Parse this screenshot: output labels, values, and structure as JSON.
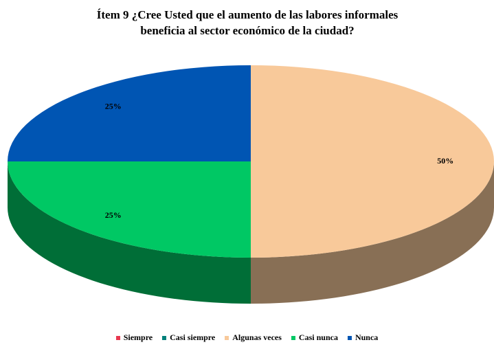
{
  "chart_data": {
    "type": "pie",
    "title": [
      "Ítem 9 ¿Cree Usted que el aumento de las labores informales",
      "beneficia al sector económico de la ciudad?"
    ],
    "categories": [
      "Siempre",
      "Casi siempre",
      "Algunas veces",
      "Casi nunca",
      "Nunca"
    ],
    "values": [
      0,
      0,
      50,
      25,
      25
    ],
    "value_labels": [
      null,
      null,
      "50%",
      "25%",
      "25%"
    ],
    "colors": [
      "#e8384f",
      "#00807a",
      "#f8c99a",
      "#00c864",
      "#0055b3"
    ],
    "legend": "bottom"
  }
}
